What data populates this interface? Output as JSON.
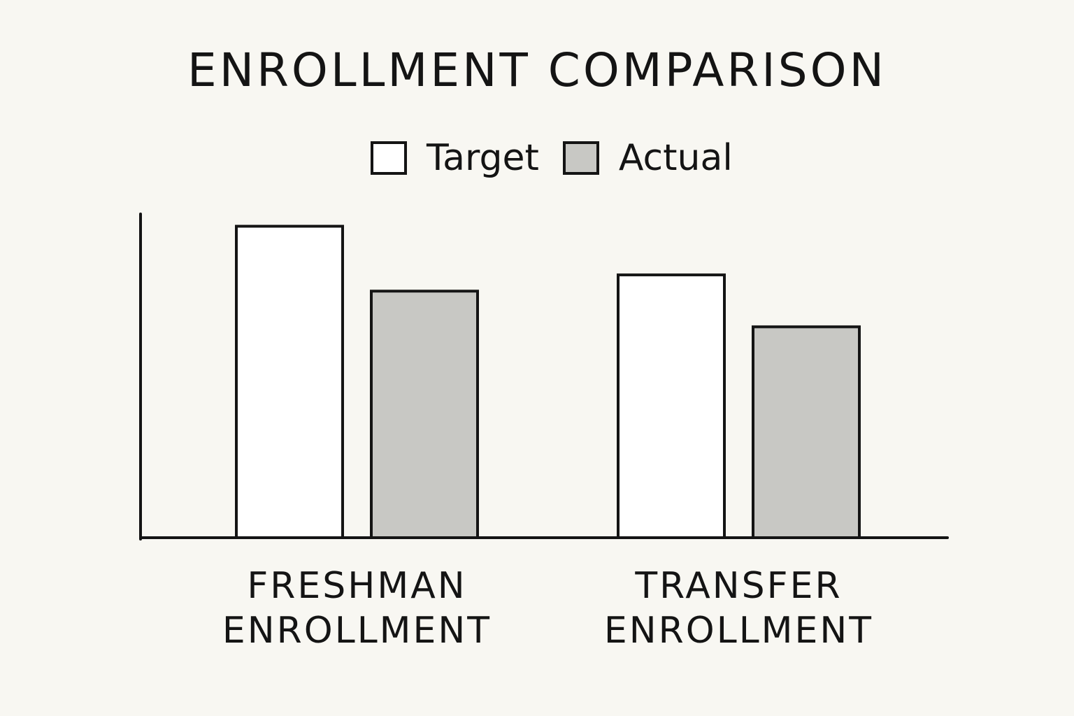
{
  "chart_data": {
    "type": "bar",
    "title": "ENROLLMENT COMPARISON",
    "categories": [
      "FRESHMAN ENROLLMENT",
      "TRANSFER ENROLLMENT"
    ],
    "category_lines": [
      [
        "FRESHMAN",
        "ENROLLMENT"
      ],
      [
        "TRANSFER",
        "ENROLLMENT"
      ]
    ],
    "series": [
      {
        "name": "Target",
        "values": [
          96,
          81
        ],
        "color": "#ffffff"
      },
      {
        "name": "Actual",
        "values": [
          76,
          65
        ],
        "color": "#c8c8c4"
      }
    ],
    "ylim": [
      0,
      100
    ],
    "xlabel": "",
    "ylabel": "",
    "grid": false,
    "legend_position": "top-center"
  },
  "colors": {
    "background": "#f8f7f2",
    "ink": "#141414"
  }
}
